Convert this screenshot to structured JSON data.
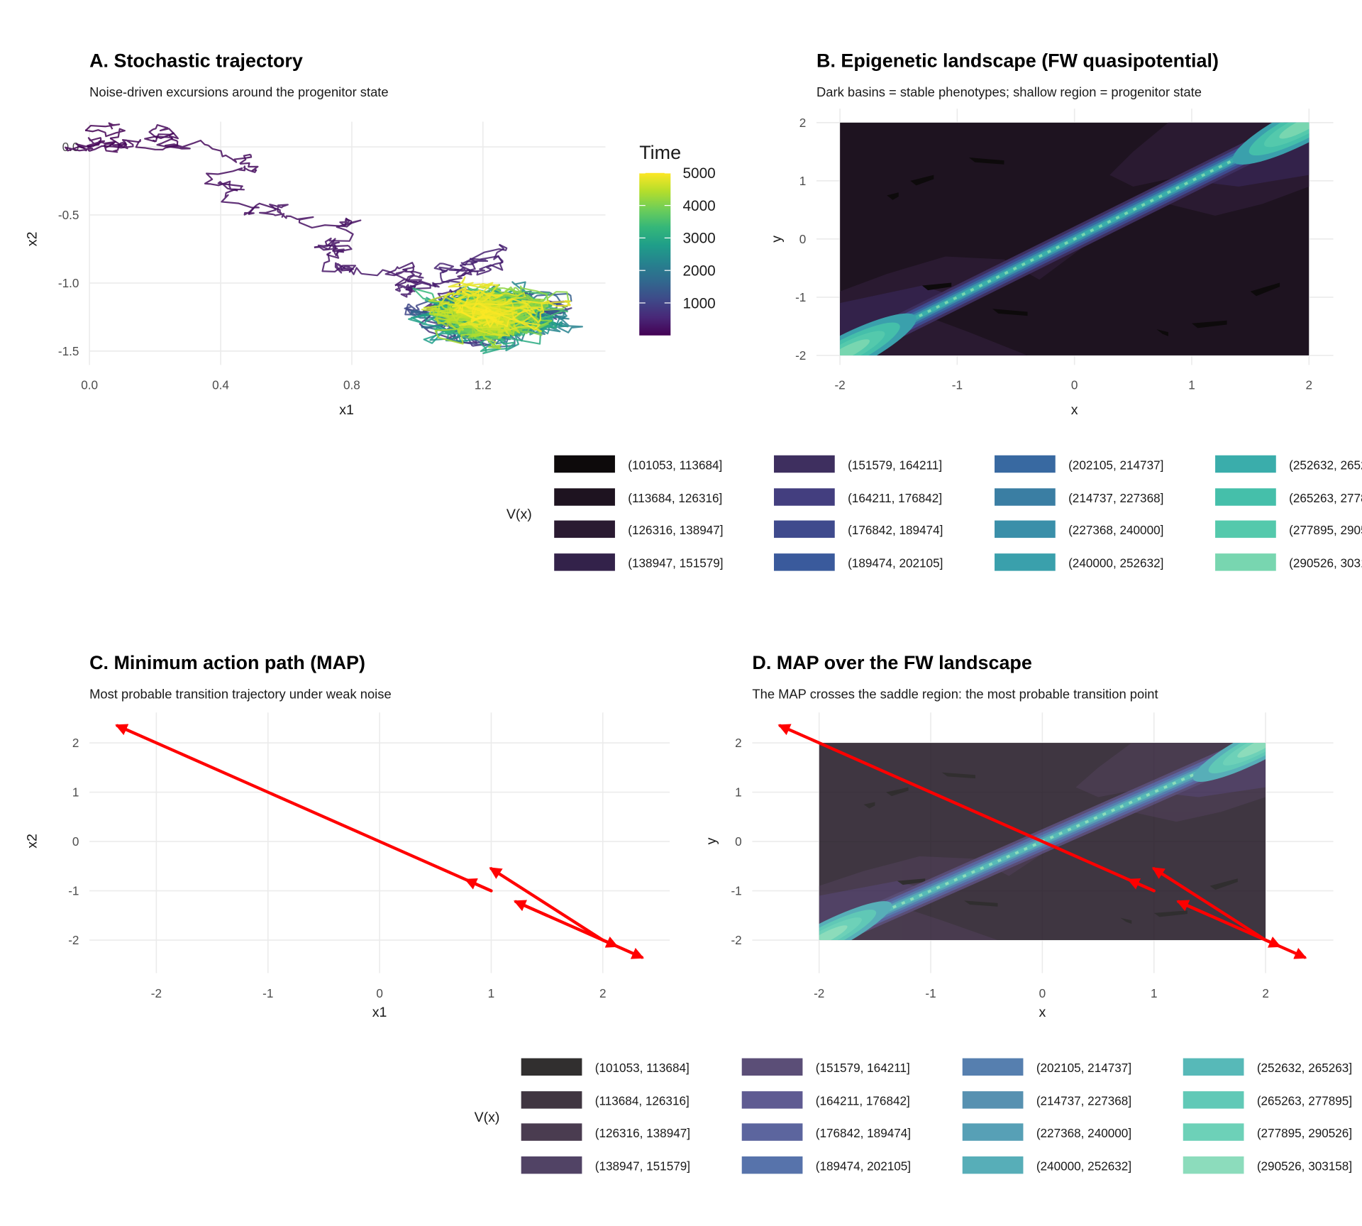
{
  "chart_data": [
    {
      "type": "line",
      "title": "A. Stochastic trajectory",
      "subtitle": "Noise-driven excursions around the progenitor state",
      "xlabel": "x1",
      "ylabel": "x2",
      "xlim": [
        0,
        1.57
      ],
      "ylim": [
        -1.6,
        0.19
      ],
      "xticks": [
        {
          "v": 0,
          "label": "0.0"
        },
        {
          "v": 0.4,
          "label": "0.4"
        },
        {
          "v": 0.8,
          "label": "0.8"
        },
        {
          "v": 1.2,
          "label": "1.2"
        }
      ],
      "yticks": [
        {
          "v": 0,
          "label": "0.0"
        },
        {
          "v": -0.5,
          "label": "-0.5"
        },
        {
          "v": -1,
          "label": "-1.0"
        },
        {
          "v": -1.5,
          "label": "-1.5"
        }
      ],
      "series": {
        "start": [
          0.07,
          0.13
        ],
        "transition_end": [
          1.05,
          -1.2
        ],
        "attractor_center": [
          1.22,
          -1.24
        ],
        "time_range": [
          0,
          5000
        ]
      },
      "legend": {
        "title": "Time",
        "ticks": [
          {
            "v": 1000,
            "label": "1000"
          },
          {
            "v": 2000,
            "label": "2000"
          },
          {
            "v": 3000,
            "label": "3000"
          },
          {
            "v": 4000,
            "label": "4000"
          },
          {
            "v": 5000,
            "label": "5000"
          }
        ],
        "range": [
          0,
          5000
        ]
      },
      "grid": true
    },
    {
      "type": "heatmap",
      "title": "B. Epigenetic landscape (FW quasipotential)",
      "subtitle": "Dark basins = stable phenotypes; shallow region = progenitor state",
      "xlabel": "x",
      "ylabel": "y",
      "xlim": [
        -2,
        2
      ],
      "ylim": [
        -2,
        2
      ],
      "xticks": [
        {
          "v": -2,
          "label": "-2"
        },
        {
          "v": -1,
          "label": "-1"
        },
        {
          "v": 0,
          "label": "0"
        },
        {
          "v": 1,
          "label": "1"
        },
        {
          "v": 2,
          "label": "2"
        }
      ],
      "yticks": [
        {
          "v": -2,
          "label": "-2"
        },
        {
          "v": -1,
          "label": "-1"
        },
        {
          "v": 0,
          "label": "0"
        },
        {
          "v": 1,
          "label": "1"
        },
        {
          "v": 2,
          "label": "2"
        }
      ],
      "legend_title": "V(x)",
      "grid": true
    },
    {
      "type": "line",
      "title": "C. Minimum action path (MAP)",
      "subtitle": "Most probable transition trajectory under weak noise",
      "xlabel": "x1",
      "ylabel": "x2",
      "xlim": [
        -2.6,
        2.6
      ],
      "ylim": [
        -2.6,
        2.6
      ],
      "xticks": [
        {
          "v": -2,
          "label": "-2"
        },
        {
          "v": -1,
          "label": "-1"
        },
        {
          "v": 0,
          "label": "0"
        },
        {
          "v": 1,
          "label": "1"
        },
        {
          "v": 2,
          "label": "2"
        }
      ],
      "yticks": [
        {
          "v": -2,
          "label": "-2"
        },
        {
          "v": -1,
          "label": "-1"
        },
        {
          "v": 0,
          "label": "0"
        },
        {
          "v": 1,
          "label": "1"
        },
        {
          "v": 2,
          "label": "2"
        }
      ],
      "arrows": [
        [
          1,
          -1,
          -2.35,
          2.35
        ],
        [
          1,
          -1,
          0.78,
          -0.78
        ],
        [
          1.5,
          -1.5,
          1.22,
          -1.22
        ],
        [
          1.3,
          -1.3,
          2.35,
          -2.35
        ],
        [
          2,
          -2,
          1,
          -0.55
        ],
        [
          2,
          -2,
          2.12,
          -2.12
        ]
      ],
      "arrow_color": "#ff0000",
      "grid": true
    },
    {
      "type": "heatmap",
      "title": "D. MAP over the FW landscape",
      "subtitle": "The MAP crosses the saddle region: the most probable transition point",
      "xlabel": "x",
      "ylabel": "y",
      "xlim": [
        -2,
        2
      ],
      "ylim": [
        -2,
        2
      ],
      "xticks": [
        {
          "v": -2,
          "label": "-2"
        },
        {
          "v": -1,
          "label": "-1"
        },
        {
          "v": 0,
          "label": "0"
        },
        {
          "v": 1,
          "label": "1"
        },
        {
          "v": 2,
          "label": "2"
        }
      ],
      "yticks": [
        {
          "v": -2,
          "label": "-2"
        },
        {
          "v": -1,
          "label": "-1"
        },
        {
          "v": 0,
          "label": "0"
        },
        {
          "v": 1,
          "label": "1"
        },
        {
          "v": 2,
          "label": "2"
        }
      ],
      "legend_title": "V(x)",
      "arrows": [
        [
          1,
          -1,
          -2.35,
          2.35
        ],
        [
          1,
          -1,
          0.78,
          -0.78
        ],
        [
          1.5,
          -1.5,
          1.22,
          -1.22
        ],
        [
          1.3,
          -1.3,
          2.35,
          -2.35
        ],
        [
          2,
          -2,
          1,
          -0.55
        ],
        [
          2,
          -2,
          2.12,
          -2.12
        ]
      ],
      "arrow_color": "#ff0000",
      "fill_alpha": 0.85,
      "grid": true
    }
  ],
  "bins": [
    {
      "label": "(101053, 113684]",
      "color": "#0d0a0b"
    },
    {
      "label": "(113684, 126316]",
      "color": "#1e1320"
    },
    {
      "label": "(126316, 138947]",
      "color": "#2a1a31"
    },
    {
      "label": "(138947, 151579]",
      "color": "#33224a"
    },
    {
      "label": "(151579, 164211]",
      "color": "#3e2f5f"
    },
    {
      "label": "(164211, 176842]",
      "color": "#433e7f"
    },
    {
      "label": "(176842, 189474]",
      "color": "#3f4a8d"
    },
    {
      "label": "(189474, 202105]",
      "color": "#3a5a9c"
    },
    {
      "label": "(202105, 214737]",
      "color": "#3869a1"
    },
    {
      "label": "(214737, 227368]",
      "color": "#3a7ea3"
    },
    {
      "label": "(227368, 240000]",
      "color": "#3a8fa9"
    },
    {
      "label": "(240000, 252632]",
      "color": "#3aa0ac"
    },
    {
      "label": "(252632, 265263]",
      "color": "#3aadab"
    },
    {
      "label": "(265263, 277895]",
      "color": "#45bfaa"
    },
    {
      "label": "(277895, 290526]",
      "color": "#54c9ac"
    },
    {
      "label": "(290526, 303158]",
      "color": "#78d6b0"
    }
  ]
}
